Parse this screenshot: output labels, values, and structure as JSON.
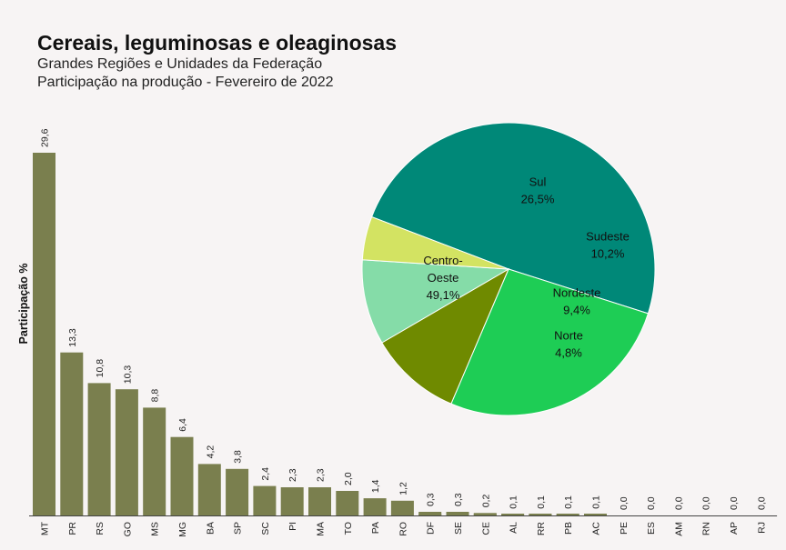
{
  "title": "Cereais, leguminosas e oleaginosas",
  "subtitle_1": "Grandes Regiões e Unidades da Federação",
  "subtitle_2": "Participação na produção - Fevereiro de 2022",
  "colors": {
    "bar": "#7a7f4e",
    "background": "#f7f4f4",
    "pie": [
      "#008878",
      "#1ecd55",
      "#6f8a00",
      "#85dca8",
      "#d3e362"
    ]
  },
  "chart_data": [
    {
      "type": "bar",
      "ylabel": "Participação %",
      "ylim": [
        0,
        30
      ],
      "grid": false,
      "categories": [
        "MT",
        "PR",
        "RS",
        "GO",
        "MS",
        "MG",
        "BA",
        "SP",
        "SC",
        "PI",
        "MA",
        "TO",
        "PA",
        "RO",
        "DF",
        "SE",
        "CE",
        "AL",
        "RR",
        "PB",
        "AC",
        "PE",
        "ES",
        "AM",
        "RN",
        "AP",
        "RJ"
      ],
      "values": [
        29.6,
        13.3,
        10.8,
        10.3,
        8.8,
        6.4,
        4.2,
        3.8,
        2.4,
        2.3,
        2.3,
        2.0,
        1.4,
        1.2,
        0.3,
        0.3,
        0.2,
        0.1,
        0.1,
        0.1,
        0.1,
        0.0,
        0.0,
        0.0,
        0.0,
        0.0,
        0.0
      ],
      "value_labels": [
        "29,6",
        "13,3",
        "10,8",
        "10,3",
        "8,8",
        "6,4",
        "4,2",
        "3,8",
        "2,4",
        "2,3",
        "2,3",
        "2,0",
        "1,4",
        "1,2",
        "0,3",
        "0,3",
        "0,2",
        "0,1",
        "0,1",
        "0,1",
        "0,1",
        "0,0",
        "0,0",
        "0,0",
        "0,0",
        "0,0",
        "0,0"
      ]
    },
    {
      "type": "pie",
      "slices": [
        {
          "label_lines": [
            "Centro-",
            "Oeste"
          ],
          "value": 49.1,
          "value_label": "49,1%"
        },
        {
          "label_lines": [
            "Sul"
          ],
          "value": 26.5,
          "value_label": "26,5%"
        },
        {
          "label_lines": [
            "Sudeste"
          ],
          "value": 10.2,
          "value_label": "10,2%"
        },
        {
          "label_lines": [
            "Nordeste"
          ],
          "value": 9.4,
          "value_label": "9,4%"
        },
        {
          "label_lines": [
            "Norte"
          ],
          "value": 4.8,
          "value_label": "4,8%"
        }
      ]
    }
  ]
}
